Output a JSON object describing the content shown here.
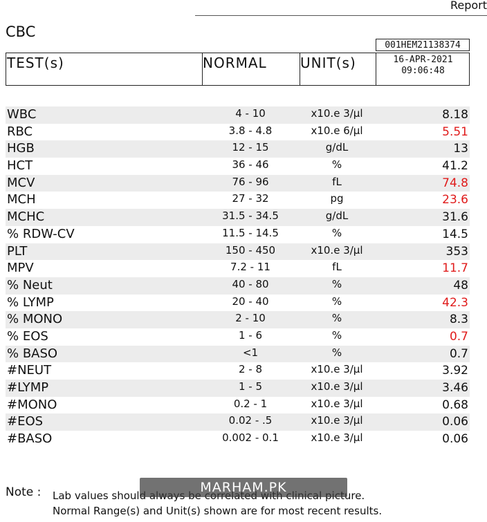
{
  "header": {
    "report_word": "Report",
    "section_title": "CBC",
    "report_id": "001HEM21138374",
    "date": "16-APR-2021",
    "time": "09:06:48"
  },
  "columns": {
    "test": "TEST(s)",
    "normal": "NORMAL",
    "unit": "UNIT(s)"
  },
  "rows": [
    {
      "name": "WBC",
      "normal": "4 - 10",
      "unit": "x10.e 3/µl",
      "value": "8.18",
      "abnormal": false
    },
    {
      "name": "RBC",
      "normal": "3.8 - 4.8",
      "unit": "x10.e 6/µl",
      "value": "5.51",
      "abnormal": true
    },
    {
      "name": "HGB",
      "normal": "12 - 15",
      "unit": "g/dL",
      "value": "13",
      "abnormal": false
    },
    {
      "name": "HCT",
      "normal": "36 - 46",
      "unit": "%",
      "value": "41.2",
      "abnormal": false
    },
    {
      "name": "MCV",
      "normal": "76 - 96",
      "unit": "fL",
      "value": "74.8",
      "abnormal": true
    },
    {
      "name": "MCH",
      "normal": "27 - 32",
      "unit": "pg",
      "value": "23.6",
      "abnormal": true
    },
    {
      "name": "MCHC",
      "normal": "31.5 - 34.5",
      "unit": "g/dL",
      "value": "31.6",
      "abnormal": false
    },
    {
      "name": "% RDW-CV",
      "normal": "11.5 - 14.5",
      "unit": "%",
      "value": "14.5",
      "abnormal": false
    },
    {
      "name": "PLT",
      "normal": "150 - 450",
      "unit": "x10.e 3/µl",
      "value": "353",
      "abnormal": false
    },
    {
      "name": "MPV",
      "normal": "7.2 - 11",
      "unit": "fL",
      "value": "11.7",
      "abnormal": true
    },
    {
      "name": "% Neut",
      "normal": "40 - 80",
      "unit": "%",
      "value": "48",
      "abnormal": false
    },
    {
      "name": "% LYMP",
      "normal": "20 - 40",
      "unit": "%",
      "value": "42.3",
      "abnormal": true
    },
    {
      "name": "% MONO",
      "normal": "2 - 10",
      "unit": "%",
      "value": "8.3",
      "abnormal": false
    },
    {
      "name": "% EOS",
      "normal": "1 - 6",
      "unit": "%",
      "value": "0.7",
      "abnormal": true
    },
    {
      "name": "% BASO",
      "normal": "<1",
      "unit": "%",
      "value": "0.7",
      "abnormal": false
    },
    {
      "name": "#NEUT",
      "normal": "2 - 8",
      "unit": "x10.e 3/µl",
      "value": "3.92",
      "abnormal": false
    },
    {
      "name": "#LYMP",
      "normal": "1 - 5",
      "unit": "x10.e 3/µl",
      "value": "3.46",
      "abnormal": false
    },
    {
      "name": "#MONO",
      "normal": "0.2 - 1",
      "unit": "x10.e 3/µl",
      "value": "0.68",
      "abnormal": false
    },
    {
      "name": "#EOS",
      "normal": "0.02 - .5",
      "unit": "x10.e 3/µl",
      "value": "0.06",
      "abnormal": false
    },
    {
      "name": "#BASO",
      "normal": "0.002 - 0.1",
      "unit": "x10.e 3/µl",
      "value": "0.06",
      "abnormal": false
    }
  ],
  "note": {
    "label": "Note :",
    "line1": "Lab values should always be correlated with clinical picture.",
    "line2": "Normal Range(s) and Unit(s) shown are for most recent results."
  },
  "watermark": "MARHAM.PK",
  "colors": {
    "abnormal": "#e01b1b",
    "row_shade": "#ececec"
  }
}
